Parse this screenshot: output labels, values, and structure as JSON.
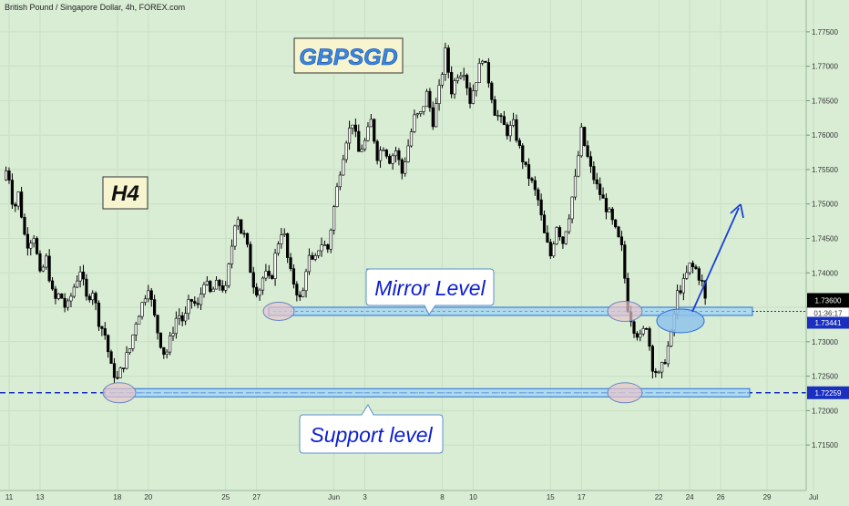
{
  "header": {
    "symbol_title": "British Pound / Singapore Dollar, 4h, FOREX.com"
  },
  "annotations": {
    "symbol_box": "GBPSGD",
    "timeframe_box": "H4",
    "mirror_label": "Mirror Level",
    "support_label": "Support level"
  },
  "price_scale": {
    "last_price": "1.73600",
    "countdown": "01:36:17",
    "mirror_price": "1.73441",
    "support_price": "1.72259"
  },
  "colors": {
    "background": "#d8edd4",
    "candle": "#000000",
    "annotation_text": "#0d1fd0",
    "zone_fill": "#9fd3f5",
    "zone_stroke": "#2a6fd6",
    "ellipse_fill": "#e8c4cc",
    "arrow": "#1a3fd6",
    "label_bg_yellow": "#f6f5cf",
    "title_accent": "#3a86e0"
  },
  "chart_data": {
    "type": "candlestick",
    "title": "British Pound / Singapore Dollar, 4h, FOREX.com",
    "ylim": [
      1.7125,
      1.7775
    ],
    "y_ticks": [
      "1.71500",
      "1.72000",
      "1.72500",
      "1.73000",
      "1.73500",
      "1.74000",
      "1.74500",
      "1.75000",
      "1.75500",
      "1.76000",
      "1.76500",
      "1.77000",
      "1.77500"
    ],
    "x_ticks": [
      "11",
      "13",
      "18",
      "20",
      "25",
      "27",
      "Jun",
      "3",
      "8",
      "10",
      "15",
      "17",
      "22",
      "24",
      "26",
      "29",
      "Jul"
    ],
    "x_tick_days": [
      11,
      13,
      18,
      20,
      25,
      27,
      32,
      34,
      39,
      41,
      46,
      48,
      53,
      55,
      57,
      60,
      63
    ],
    "horizontal_levels": [
      {
        "name": "Mirror Level",
        "value": 1.73441
      },
      {
        "name": "Support level",
        "value": 1.72259
      }
    ],
    "last_price": 1.736,
    "path_points": [
      [
        10.6,
        1.7535
      ],
      [
        10.9,
        1.7555
      ],
      [
        11.3,
        1.749
      ],
      [
        11.6,
        1.7515
      ],
      [
        12.1,
        1.744
      ],
      [
        12.6,
        1.7455
      ],
      [
        13.0,
        1.7395
      ],
      [
        13.4,
        1.742
      ],
      [
        13.9,
        1.7358
      ],
      [
        14.3,
        1.737
      ],
      [
        14.7,
        1.7345
      ],
      [
        15.2,
        1.738
      ],
      [
        15.6,
        1.7405
      ],
      [
        16.0,
        1.7362
      ],
      [
        16.4,
        1.7375
      ],
      [
        16.8,
        1.733
      ],
      [
        17.2,
        1.731
      ],
      [
        17.6,
        1.7262
      ],
      [
        18.0,
        1.7245
      ],
      [
        18.4,
        1.7268
      ],
      [
        18.8,
        1.729
      ],
      [
        19.2,
        1.733
      ],
      [
        19.6,
        1.7355
      ],
      [
        20.0,
        1.7382
      ],
      [
        20.3,
        1.7345
      ],
      [
        20.7,
        1.7305
      ],
      [
        21.1,
        1.7278
      ],
      [
        21.5,
        1.731
      ],
      [
        21.9,
        1.7342
      ],
      [
        22.3,
        1.7328
      ],
      [
        22.7,
        1.7362
      ],
      [
        23.2,
        1.735
      ],
      [
        23.6,
        1.739
      ],
      [
        24.0,
        1.737
      ],
      [
        24.5,
        1.7385
      ],
      [
        25.0,
        1.7375
      ],
      [
        25.4,
        1.744
      ],
      [
        25.7,
        1.7492
      ],
      [
        26.0,
        1.746
      ],
      [
        26.3,
        1.745
      ],
      [
        26.7,
        1.739
      ],
      [
        27.1,
        1.737
      ],
      [
        27.5,
        1.74
      ],
      [
        27.9,
        1.7385
      ],
      [
        28.3,
        1.7438
      ],
      [
        28.7,
        1.7468
      ],
      [
        29.1,
        1.7405
      ],
      [
        29.5,
        1.738
      ],
      [
        29.9,
        1.7355
      ],
      [
        30.3,
        1.7425
      ],
      [
        30.7,
        1.741
      ],
      [
        31.1,
        1.7445
      ],
      [
        31.6,
        1.7435
      ],
      [
        32.0,
        1.7495
      ],
      [
        32.4,
        1.755
      ],
      [
        32.8,
        1.7595
      ],
      [
        33.2,
        1.762
      ],
      [
        33.6,
        1.7575
      ],
      [
        34.0,
        1.759
      ],
      [
        34.4,
        1.762
      ],
      [
        34.8,
        1.757
      ],
      [
        35.2,
        1.7585
      ],
      [
        35.6,
        1.7565
      ],
      [
        36.0,
        1.7578
      ],
      [
        36.4,
        1.7545
      ],
      [
        36.8,
        1.7585
      ],
      [
        37.2,
        1.7625
      ],
      [
        37.6,
        1.763
      ],
      [
        38.0,
        1.766
      ],
      [
        38.4,
        1.762
      ],
      [
        38.8,
        1.7665
      ],
      [
        39.2,
        1.772
      ],
      [
        39.6,
        1.7665
      ],
      [
        40.0,
        1.769
      ],
      [
        40.4,
        1.7695
      ],
      [
        40.8,
        1.765
      ],
      [
        41.2,
        1.7682
      ],
      [
        41.6,
        1.7715
      ],
      [
        42.0,
        1.768
      ],
      [
        42.4,
        1.7635
      ],
      [
        42.8,
        1.762
      ],
      [
        43.2,
        1.7605
      ],
      [
        43.6,
        1.7615
      ],
      [
        44.0,
        1.758
      ],
      [
        44.4,
        1.755
      ],
      [
        44.8,
        1.753
      ],
      [
        45.2,
        1.7505
      ],
      [
        45.6,
        1.7455
      ],
      [
        46.0,
        1.7425
      ],
      [
        46.4,
        1.747
      ],
      [
        46.8,
        1.7445
      ],
      [
        47.2,
        1.7485
      ],
      [
        47.6,
        1.7535
      ],
      [
        48.0,
        1.7605
      ],
      [
        48.3,
        1.7575
      ],
      [
        48.6,
        1.755
      ],
      [
        49.0,
        1.7525
      ],
      [
        49.4,
        1.7505
      ],
      [
        49.8,
        1.7485
      ],
      [
        50.2,
        1.746
      ],
      [
        50.6,
        1.7435
      ],
      [
        51.0,
        1.735
      ],
      [
        51.4,
        1.732
      ],
      [
        51.8,
        1.7305
      ],
      [
        52.2,
        1.7325
      ],
      [
        52.6,
        1.7265
      ],
      [
        53.0,
        1.725
      ],
      [
        53.4,
        1.7275
      ],
      [
        53.8,
        1.731
      ],
      [
        54.2,
        1.737
      ],
      [
        54.6,
        1.7385
      ],
      [
        55.0,
        1.741
      ],
      [
        55.4,
        1.7405
      ],
      [
        55.8,
        1.7385
      ],
      [
        56.0,
        1.736
      ]
    ]
  }
}
